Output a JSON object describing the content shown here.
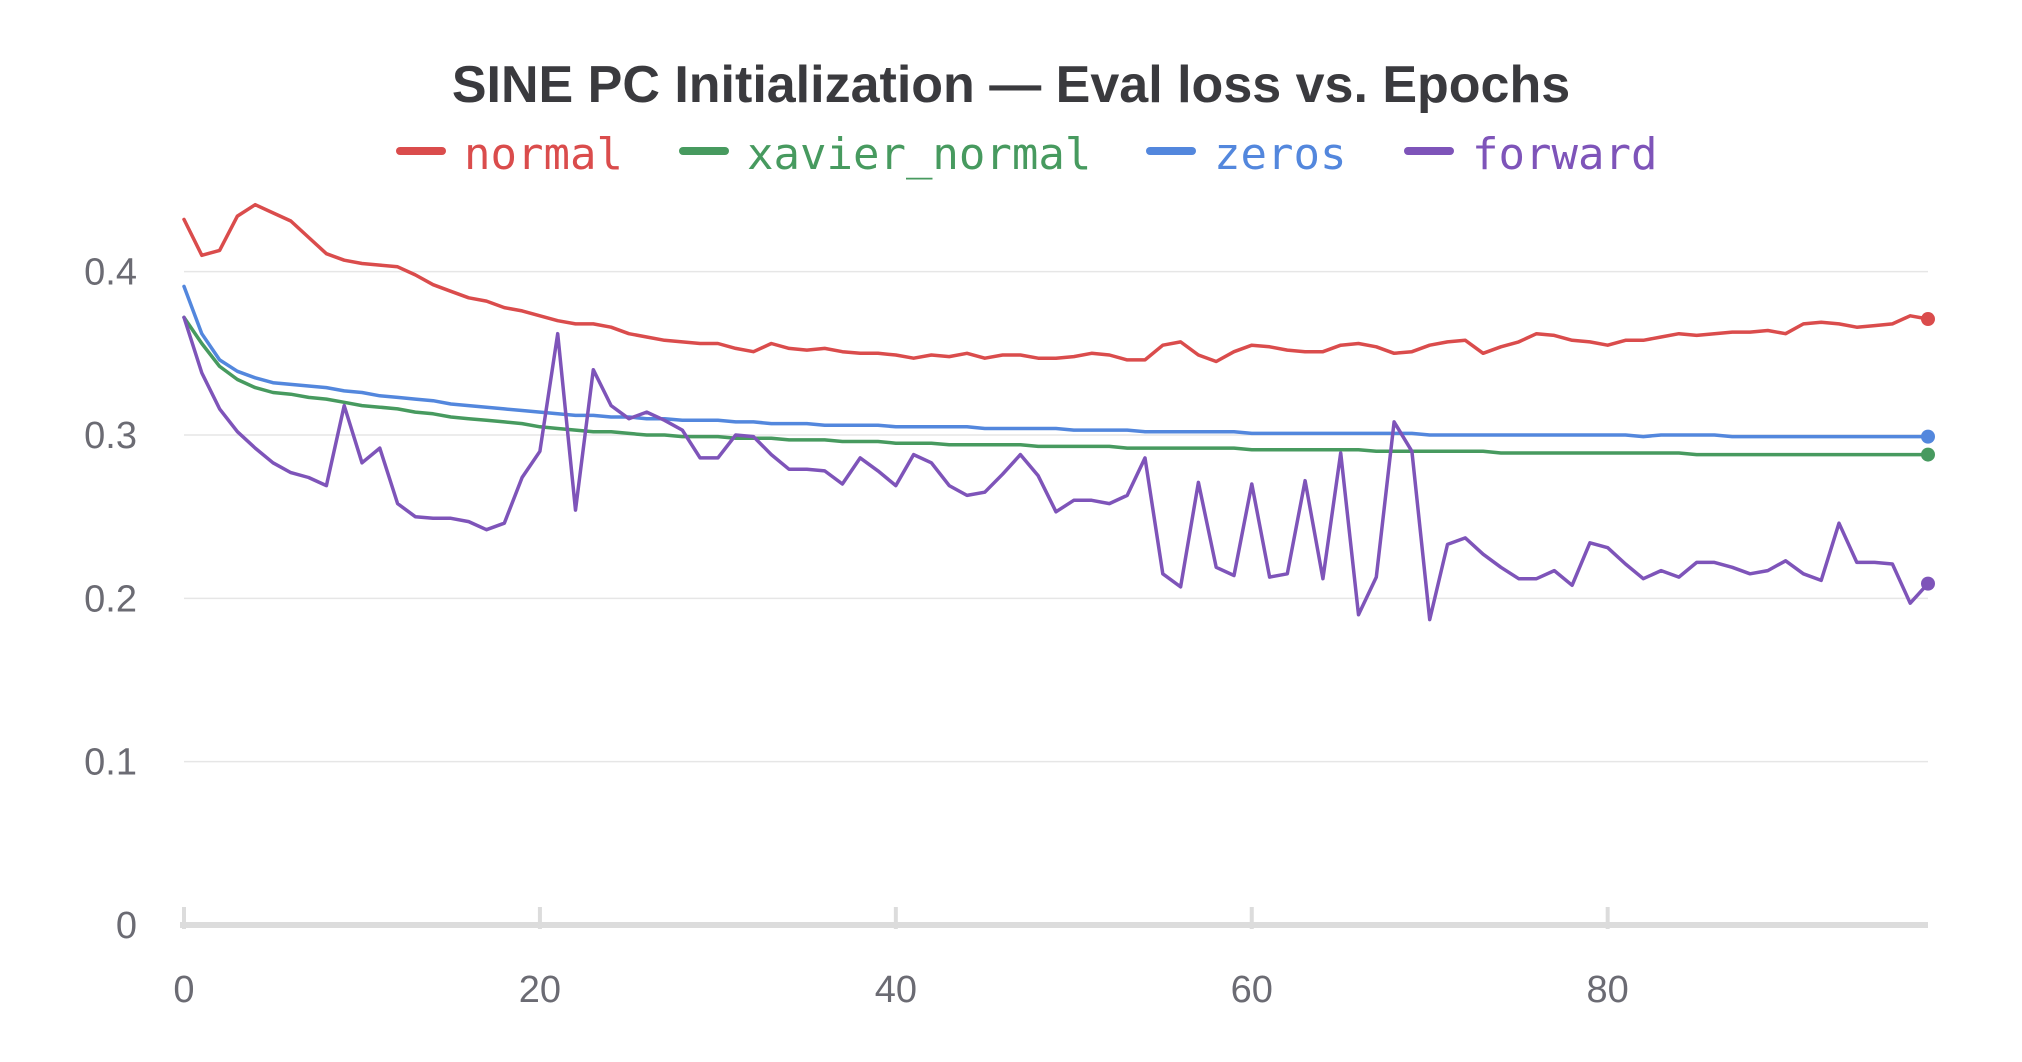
{
  "chart_data": {
    "type": "line",
    "title": "SINE PC Initialization — Eval loss vs. Epochs",
    "xlabel": "",
    "ylabel": "",
    "xlim": [
      0,
      98
    ],
    "ylim": [
      0,
      0.45
    ],
    "xticks": [
      0,
      20,
      40,
      60,
      80
    ],
    "yticks": [
      0,
      0.1,
      0.2,
      0.3,
      0.4
    ],
    "grid": true,
    "legend_position": "top",
    "x": [
      0,
      1,
      2,
      3,
      4,
      5,
      6,
      7,
      8,
      9,
      10,
      11,
      12,
      13,
      14,
      15,
      16,
      17,
      18,
      19,
      20,
      21,
      22,
      23,
      24,
      25,
      26,
      27,
      28,
      29,
      30,
      31,
      32,
      33,
      34,
      35,
      36,
      37,
      38,
      39,
      40,
      41,
      42,
      43,
      44,
      45,
      46,
      47,
      48,
      49,
      50,
      51,
      52,
      53,
      54,
      55,
      56,
      57,
      58,
      59,
      60,
      61,
      62,
      63,
      64,
      65,
      66,
      67,
      68,
      69,
      70,
      71,
      72,
      73,
      74,
      75,
      76,
      77,
      78,
      79,
      80,
      81,
      82,
      83,
      84,
      85,
      86,
      87,
      88,
      89,
      90,
      91,
      92,
      93,
      94,
      95,
      96,
      97,
      98
    ],
    "series": [
      {
        "name": "normal",
        "color": "#da4c4c",
        "values": [
          0.432,
          0.41,
          0.413,
          0.434,
          0.441,
          0.436,
          0.431,
          0.421,
          0.411,
          0.407,
          0.405,
          0.404,
          0.403,
          0.398,
          0.392,
          0.388,
          0.384,
          0.382,
          0.378,
          0.376,
          0.373,
          0.37,
          0.368,
          0.368,
          0.366,
          0.362,
          0.36,
          0.358,
          0.357,
          0.356,
          0.356,
          0.353,
          0.351,
          0.356,
          0.353,
          0.352,
          0.353,
          0.351,
          0.35,
          0.35,
          0.349,
          0.347,
          0.349,
          0.348,
          0.35,
          0.347,
          0.349,
          0.349,
          0.347,
          0.347,
          0.348,
          0.35,
          0.349,
          0.346,
          0.346,
          0.355,
          0.357,
          0.349,
          0.345,
          0.351,
          0.355,
          0.354,
          0.352,
          0.351,
          0.351,
          0.355,
          0.356,
          0.354,
          0.35,
          0.351,
          0.355,
          0.357,
          0.358,
          0.35,
          0.354,
          0.357,
          0.362,
          0.361,
          0.358,
          0.357,
          0.355,
          0.358,
          0.358,
          0.36,
          0.362,
          0.361,
          0.362,
          0.363,
          0.363,
          0.364,
          0.362,
          0.368,
          0.369,
          0.368,
          0.366,
          0.367,
          0.368,
          0.373,
          0.371
        ]
      },
      {
        "name": "xavier_normal",
        "color": "#479a5f",
        "values": [
          0.372,
          0.356,
          0.342,
          0.334,
          0.329,
          0.326,
          0.325,
          0.323,
          0.322,
          0.32,
          0.318,
          0.317,
          0.316,
          0.314,
          0.313,
          0.311,
          0.31,
          0.309,
          0.308,
          0.307,
          0.305,
          0.304,
          0.303,
          0.302,
          0.302,
          0.301,
          0.3,
          0.3,
          0.299,
          0.299,
          0.299,
          0.298,
          0.298,
          0.298,
          0.297,
          0.297,
          0.297,
          0.296,
          0.296,
          0.296,
          0.295,
          0.295,
          0.295,
          0.294,
          0.294,
          0.294,
          0.294,
          0.294,
          0.293,
          0.293,
          0.293,
          0.293,
          0.293,
          0.292,
          0.292,
          0.292,
          0.292,
          0.292,
          0.292,
          0.292,
          0.291,
          0.291,
          0.291,
          0.291,
          0.291,
          0.291,
          0.291,
          0.29,
          0.29,
          0.29,
          0.29,
          0.29,
          0.29,
          0.29,
          0.289,
          0.289,
          0.289,
          0.289,
          0.289,
          0.289,
          0.289,
          0.289,
          0.289,
          0.289,
          0.289,
          0.288,
          0.288,
          0.288,
          0.288,
          0.288,
          0.288,
          0.288,
          0.288,
          0.288,
          0.288,
          0.288,
          0.288,
          0.288,
          0.288
        ]
      },
      {
        "name": "zeros",
        "color": "#5387dd",
        "values": [
          0.391,
          0.362,
          0.346,
          0.339,
          0.335,
          0.332,
          0.331,
          0.33,
          0.329,
          0.327,
          0.326,
          0.324,
          0.323,
          0.322,
          0.321,
          0.319,
          0.318,
          0.317,
          0.316,
          0.315,
          0.314,
          0.313,
          0.312,
          0.312,
          0.311,
          0.311,
          0.31,
          0.31,
          0.309,
          0.309,
          0.309,
          0.308,
          0.308,
          0.307,
          0.307,
          0.307,
          0.306,
          0.306,
          0.306,
          0.306,
          0.305,
          0.305,
          0.305,
          0.305,
          0.305,
          0.304,
          0.304,
          0.304,
          0.304,
          0.304,
          0.303,
          0.303,
          0.303,
          0.303,
          0.302,
          0.302,
          0.302,
          0.302,
          0.302,
          0.302,
          0.301,
          0.301,
          0.301,
          0.301,
          0.301,
          0.301,
          0.301,
          0.301,
          0.301,
          0.301,
          0.3,
          0.3,
          0.3,
          0.3,
          0.3,
          0.3,
          0.3,
          0.3,
          0.3,
          0.3,
          0.3,
          0.3,
          0.299,
          0.3,
          0.3,
          0.3,
          0.3,
          0.299,
          0.299,
          0.299,
          0.299,
          0.299,
          0.299,
          0.299,
          0.299,
          0.299,
          0.299,
          0.299,
          0.299
        ]
      },
      {
        "name": "forward",
        "color": "#7e54b9",
        "values": [
          0.372,
          0.338,
          0.316,
          0.302,
          0.292,
          0.283,
          0.277,
          0.274,
          0.269,
          0.318,
          0.283,
          0.292,
          0.258,
          0.25,
          0.249,
          0.249,
          0.247,
          0.242,
          0.246,
          0.274,
          0.29,
          0.362,
          0.254,
          0.34,
          0.318,
          0.31,
          0.314,
          0.309,
          0.303,
          0.286,
          0.286,
          0.3,
          0.299,
          0.288,
          0.279,
          0.279,
          0.278,
          0.27,
          0.286,
          0.278,
          0.269,
          0.288,
          0.283,
          0.269,
          0.263,
          0.265,
          0.276,
          0.288,
          0.275,
          0.253,
          0.26,
          0.26,
          0.258,
          0.263,
          0.286,
          0.215,
          0.207,
          0.271,
          0.219,
          0.214,
          0.27,
          0.213,
          0.215,
          0.272,
          0.212,
          0.289,
          0.19,
          0.213,
          0.308,
          0.29,
          0.187,
          0.233,
          0.237,
          0.227,
          0.219,
          0.212,
          0.212,
          0.217,
          0.208,
          0.234,
          0.231,
          0.221,
          0.212,
          0.217,
          0.213,
          0.222,
          0.222,
          0.219,
          0.215,
          0.217,
          0.223,
          0.215,
          0.211,
          0.246,
          0.222,
          0.222,
          0.221,
          0.197,
          0.209
        ]
      }
    ]
  }
}
